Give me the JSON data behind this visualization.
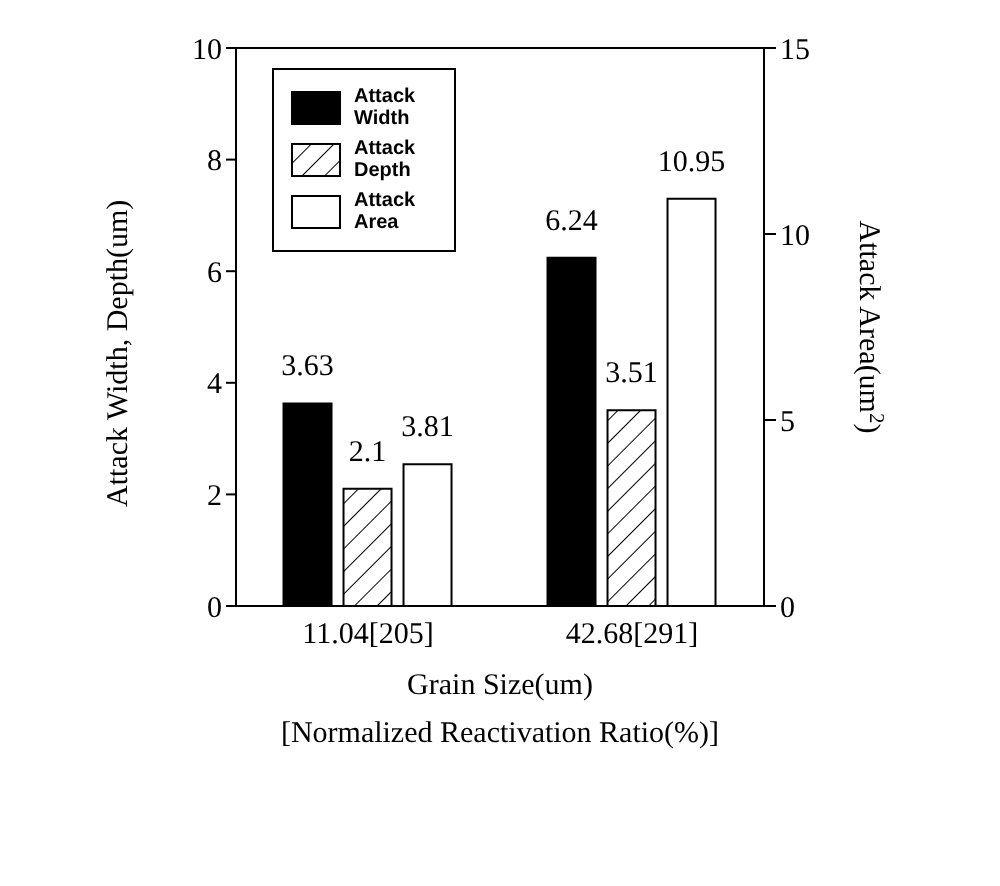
{
  "chart_data": {
    "type": "bar",
    "categories": [
      "11.04[205]",
      "42.68[291]"
    ],
    "xlabel": "Grain Size(um)\n[Normalized Reactivation Ratio(%)]",
    "ylabel": "Attack Width, Depth(um)",
    "y2label": "Attack Area(um$^{2}$)",
    "series": [
      {
        "name": "Attack Width",
        "color": "#000000",
        "values": [
          3.63,
          6.24
        ]
      },
      {
        "name": "Attack Depth",
        "color": "#000000",
        "values": [
          2.1,
          3.51
        ]
      },
      {
        "name": "Attack Area",
        "color": "#ffffff",
        "values": [
          3.81,
          10.95
        ],
        "axis": "y2"
      }
    ],
    "ylim": [
      0,
      10
    ],
    "yticks": [
      0,
      2,
      4,
      6,
      8,
      10
    ],
    "y2lim": [
      0,
      15
    ],
    "y2ticks": [
      0,
      5,
      10,
      15
    ],
    "data_labels": true,
    "legend": "top left",
    "grid": false
  }
}
